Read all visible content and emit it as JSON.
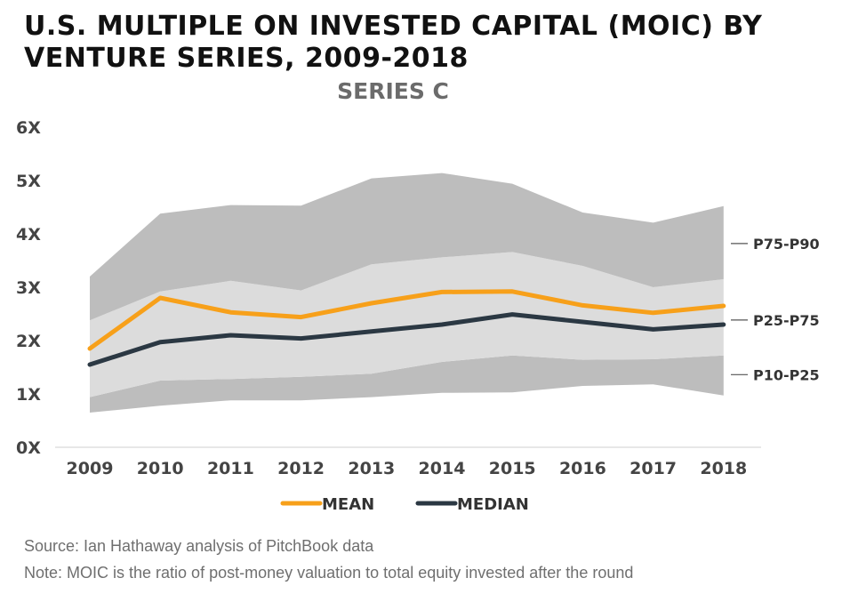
{
  "header": {
    "title": "U.S. MULTIPLE ON INVESTED CAPITAL (MOIC) BY VENTURE SERIES, 2009-2018",
    "subtitle": "SERIES C"
  },
  "footer": {
    "source": "Source: Ian Hathaway analysis of PitchBook data",
    "note": "Note: MOIC is the ratio of post-money valuation to total equity invested after the round"
  },
  "colors": {
    "mean": "#F7A01A",
    "median": "#2B3843",
    "band_outer": "#BDBDBD",
    "band_inner": "#DCDCDC"
  },
  "chart_data": {
    "type": "area",
    "title": "SERIES C",
    "xlabel": "",
    "ylabel": "",
    "categories": [
      "2009",
      "2010",
      "2011",
      "2012",
      "2013",
      "2014",
      "2015",
      "2016",
      "2017",
      "2018"
    ],
    "ylim": [
      0,
      6
    ],
    "y_ticks": [
      0,
      1,
      2,
      3,
      4,
      5,
      6
    ],
    "y_tick_labels": [
      "0X",
      "1X",
      "2X",
      "3X",
      "4X",
      "5X",
      "6X"
    ],
    "percentiles": {
      "p10": [
        0.65,
        0.78,
        0.88,
        0.88,
        0.94,
        1.02,
        1.03,
        1.15,
        1.18,
        0.97
      ],
      "p25": [
        0.94,
        1.25,
        1.28,
        1.32,
        1.38,
        1.6,
        1.72,
        1.64,
        1.65,
        1.72
      ],
      "p75": [
        2.38,
        2.92,
        3.12,
        2.94,
        3.43,
        3.56,
        3.66,
        3.4,
        3.0,
        3.15
      ],
      "p90": [
        3.2,
        4.38,
        4.54,
        4.53,
        5.04,
        5.14,
        4.94,
        4.4,
        4.21,
        4.52
      ]
    },
    "series": [
      {
        "name": "MEAN",
        "values": [
          1.85,
          2.8,
          2.53,
          2.44,
          2.7,
          2.91,
          2.92,
          2.66,
          2.52,
          2.65
        ]
      },
      {
        "name": "MEDIAN",
        "values": [
          1.55,
          1.97,
          2.1,
          2.04,
          2.17,
          2.3,
          2.49,
          2.35,
          2.21,
          2.3
        ]
      }
    ],
    "band_labels": [
      "P75-P90",
      "P25-P75",
      "P10-P25"
    ],
    "legend": [
      "MEAN",
      "MEDIAN"
    ],
    "legend_position": "bottom",
    "grid": false
  }
}
